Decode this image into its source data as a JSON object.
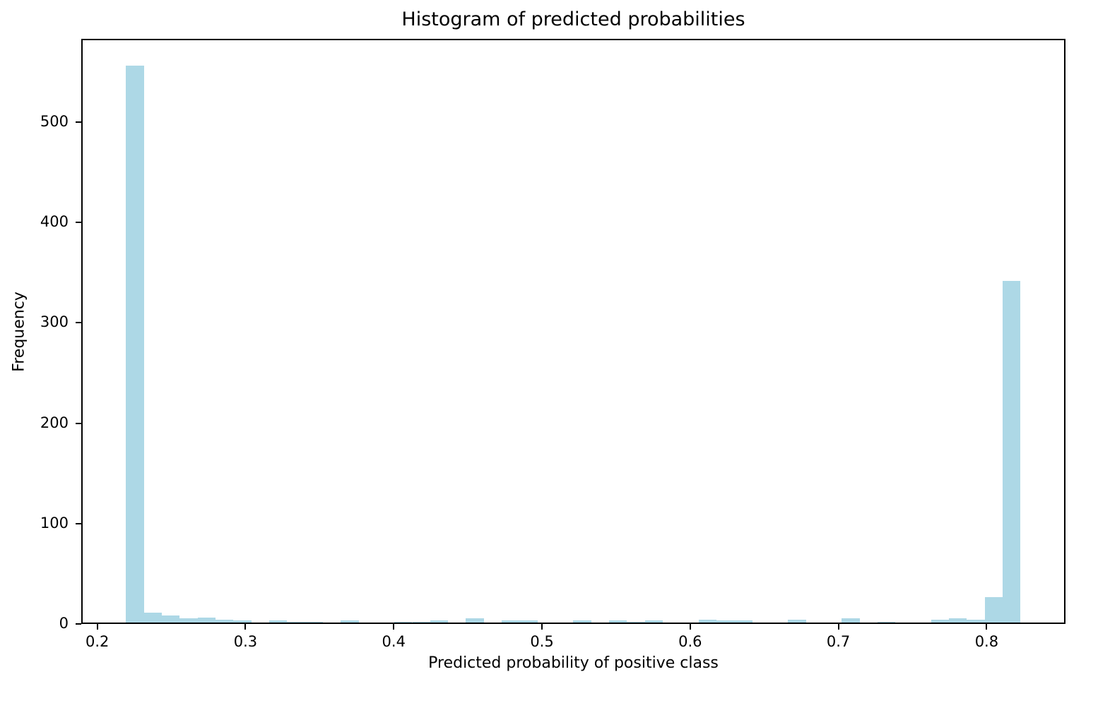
{
  "figure": {
    "background": "#ffffff"
  },
  "chart_data": {
    "type": "histogram",
    "title": "Histogram of predicted probabilities",
    "xlabel": "Predicted probability of positive class",
    "ylabel": "Frequency",
    "bar_color": "#ADD8E6",
    "axis_color": "#000000",
    "grid": false,
    "legend": null,
    "xlim": [
      0.1892,
      0.8532
    ],
    "ylim": [
      0,
      582.8
    ],
    "x_ticks": [
      0.2,
      0.3,
      0.4,
      0.5,
      0.6,
      0.7,
      0.8
    ],
    "x_tick_labels": [
      "0.2",
      "0.3",
      "0.4",
      "0.5",
      "0.6",
      "0.7",
      "0.8"
    ],
    "y_ticks": [
      0,
      100,
      200,
      300,
      400,
      500
    ],
    "y_tick_labels": [
      "0",
      "100",
      "200",
      "300",
      "400",
      "500"
    ],
    "bin_start": 0.2194,
    "bin_width": 0.01207,
    "values": [
      555,
      10,
      7,
      4,
      5,
      3,
      2,
      0,
      2,
      1,
      1,
      0,
      2,
      0,
      0,
      1,
      1,
      2,
      0,
      4,
      0,
      2,
      2,
      0,
      0,
      2,
      0,
      2,
      1,
      2,
      0,
      0,
      3,
      2,
      2,
      0,
      0,
      3,
      0,
      0,
      4,
      0,
      1,
      0,
      0,
      3,
      4,
      3,
      25,
      340
    ]
  }
}
